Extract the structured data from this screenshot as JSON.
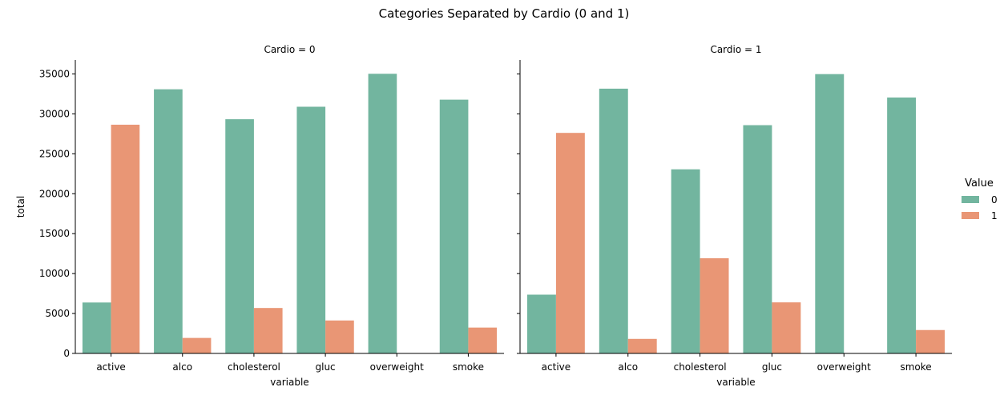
{
  "chart_data": {
    "type": "bar",
    "title": "Categories Separated by Cardio (0 and 1)",
    "xlabel": "variable",
    "ylabel": "total",
    "ylim": [
      0,
      36750
    ],
    "y_ticks": [
      0,
      5000,
      10000,
      15000,
      20000,
      25000,
      30000,
      35000
    ],
    "categories": [
      "active",
      "alco",
      "cholesterol",
      "gluc",
      "overweight",
      "smoke"
    ],
    "legend": {
      "title": "Value",
      "placement": "right",
      "entries": [
        {
          "label": "0",
          "color": "#72b59f"
        },
        {
          "label": "1",
          "color": "#e99675"
        }
      ]
    },
    "panels": [
      {
        "title": "Cardio = 0",
        "series": [
          {
            "name": "0",
            "color": "#72b59f",
            "values": [
              6378,
              33080,
              29330,
              30894,
              35021,
              31781
            ]
          },
          {
            "name": "1",
            "color": "#e99675",
            "values": [
              28643,
              1941,
              5691,
              4127,
              0,
              3240
            ]
          }
        ]
      },
      {
        "title": "Cardio = 1",
        "series": [
          {
            "name": "0",
            "color": "#72b59f",
            "values": [
              7361,
              33156,
              23055,
              28585,
              34979,
              32050
            ]
          },
          {
            "name": "1",
            "color": "#e99675",
            "values": [
              27618,
              1823,
              11924,
              6394,
              0,
              2929
            ]
          }
        ]
      }
    ]
  }
}
